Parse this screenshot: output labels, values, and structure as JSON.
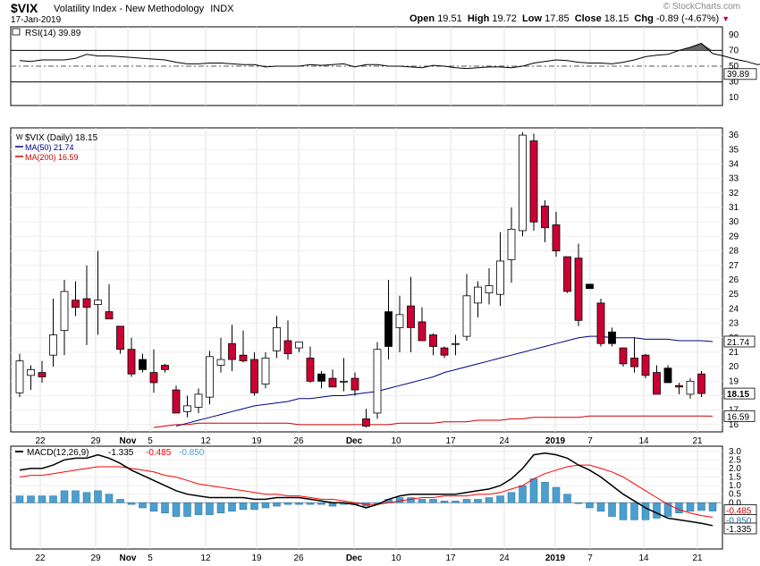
{
  "header": {
    "symbol": "$VIX",
    "name": "Volatility Index - New Methodology",
    "exchange": "INDX",
    "date": "17-Jan-2019",
    "watermark": "© StockCharts.com",
    "open_label": "Open",
    "open": "19.51",
    "high_label": "High",
    "high": "19.72",
    "low_label": "Low",
    "low": "17.85",
    "close_label": "Close",
    "close": "18.15",
    "chg_label": "Chg",
    "chg": "-0.89 (-4.67%)"
  },
  "colors": {
    "up": "#ffffff",
    "down": "#cc0033",
    "down_hollowless": "#000000",
    "ma50": "#000080",
    "ma200": "#cc0000",
    "rsi": "#000000",
    "macd_line": "#000000",
    "signal_line": "#ff0000",
    "histogram": "#4a9fd0"
  },
  "chart_data": [
    {
      "type": "line",
      "panel": "rsi",
      "label": "RSI(14) 39.89",
      "current": "39.89",
      "levels": [
        70,
        50,
        30
      ],
      "ylim": [
        0,
        100
      ],
      "y_ticks": [
        10,
        30,
        50,
        70,
        90
      ],
      "values": [
        57,
        56,
        58,
        58,
        58,
        60,
        65,
        63,
        63,
        62,
        61,
        60,
        59,
        58,
        55,
        53,
        53,
        54,
        54,
        53,
        52,
        52,
        49,
        50,
        50,
        50,
        52,
        51,
        52,
        53,
        49,
        52,
        52,
        50,
        50,
        49,
        48,
        51,
        50,
        48,
        47,
        48,
        49,
        49,
        48,
        50,
        54,
        56,
        58,
        57,
        55,
        54,
        54,
        53,
        55,
        58,
        62,
        64,
        65,
        70,
        74,
        79,
        66,
        63,
        59,
        56,
        52,
        53,
        50,
        48,
        46,
        46,
        45,
        44,
        43,
        44,
        42,
        42,
        43,
        42,
        41,
        42,
        41,
        40
      ]
    },
    {
      "type": "candlestick",
      "panel": "price",
      "label": "$VIX (Daily) 18.15",
      "ylim": [
        15.5,
        36.5
      ],
      "y_ticks": [
        16,
        17,
        18,
        19,
        20,
        21,
        22,
        23,
        24,
        25,
        26,
        27,
        28,
        29,
        30,
        31,
        32,
        33,
        34,
        35,
        36
      ],
      "x_tick_labels": [
        "22",
        "29",
        "Nov",
        "5",
        "12",
        "19",
        "26",
        "Dec",
        "10",
        "17",
        "24",
        "2019",
        "7",
        "14",
        "21"
      ],
      "candles": [
        {
          "o": 18.2,
          "h": 20.9,
          "l": 17.9,
          "c": 20.4,
          "dir": "up"
        },
        {
          "o": 19.4,
          "h": 20.1,
          "l": 18.4,
          "c": 19.8,
          "dir": "up"
        },
        {
          "o": 19.6,
          "h": 20.4,
          "l": 18.9,
          "c": 19.3,
          "dir": "down"
        },
        {
          "o": 20.8,
          "h": 24.7,
          "l": 20.0,
          "c": 22.2,
          "dir": "up"
        },
        {
          "o": 22.5,
          "h": 26.0,
          "l": 20.8,
          "c": 25.2,
          "dir": "up"
        },
        {
          "o": 24.6,
          "h": 25.9,
          "l": 23.5,
          "c": 24.1,
          "dir": "down"
        },
        {
          "o": 24.1,
          "h": 27.0,
          "l": 21.5,
          "c": 24.7,
          "dir": "down"
        },
        {
          "o": 24.3,
          "h": 28.0,
          "l": 22.2,
          "c": 24.6,
          "dir": "up"
        },
        {
          "o": 23.8,
          "h": 25.7,
          "l": 23.3,
          "c": 23.3,
          "dir": "down"
        },
        {
          "o": 22.8,
          "h": 22.7,
          "l": 20.9,
          "c": 21.2,
          "dir": "down"
        },
        {
          "o": 21.2,
          "h": 22.0,
          "l": 19.3,
          "c": 19.5,
          "dir": "down"
        },
        {
          "o": 20.5,
          "h": 20.9,
          "l": 19.6,
          "c": 19.8,
          "dir": "down_black"
        },
        {
          "o": 18.9,
          "h": 21.2,
          "l": 18.2,
          "c": 19.6,
          "dir": "down"
        },
        {
          "o": 20.1,
          "h": 20.2,
          "l": 19.6,
          "c": 19.8,
          "dir": "down"
        },
        {
          "o": 18.4,
          "h": 18.7,
          "l": 16.9,
          "c": 16.8,
          "dir": "down"
        },
        {
          "o": 16.9,
          "h": 18.0,
          "l": 16.5,
          "c": 17.3,
          "dir": "up"
        },
        {
          "o": 17.2,
          "h": 18.5,
          "l": 16.8,
          "c": 18.1,
          "dir": "up"
        },
        {
          "o": 17.9,
          "h": 21.1,
          "l": 17.4,
          "c": 20.7,
          "dir": "up"
        },
        {
          "o": 20.1,
          "h": 22.0,
          "l": 19.6,
          "c": 20.5,
          "dir": "up"
        },
        {
          "o": 21.6,
          "h": 22.9,
          "l": 19.7,
          "c": 20.5,
          "dir": "down"
        },
        {
          "o": 20.8,
          "h": 22.5,
          "l": 20.3,
          "c": 20.4,
          "dir": "down"
        },
        {
          "o": 20.5,
          "h": 21.0,
          "l": 18.0,
          "c": 18.2,
          "dir": "down"
        },
        {
          "o": 18.8,
          "h": 21.0,
          "l": 18.5,
          "c": 20.6,
          "dir": "up"
        },
        {
          "o": 21.1,
          "h": 23.5,
          "l": 20.6,
          "c": 22.7,
          "dir": "up"
        },
        {
          "o": 21.8,
          "h": 23.2,
          "l": 20.5,
          "c": 20.9,
          "dir": "down"
        },
        {
          "o": 21.7,
          "h": 21.7,
          "l": 21.0,
          "c": 21.3,
          "dir": "up"
        },
        {
          "o": 20.6,
          "h": 21.4,
          "l": 18.9,
          "c": 19.0,
          "dir": "down"
        },
        {
          "o": 19.5,
          "h": 19.7,
          "l": 18.5,
          "c": 19.0,
          "dir": "down_black"
        },
        {
          "o": 19.2,
          "h": 19.8,
          "l": 18.6,
          "c": 18.6,
          "dir": "down"
        },
        {
          "o": 19.0,
          "h": 20.6,
          "l": 18.3,
          "c": 19.0,
          "dir": "up"
        },
        {
          "o": 19.2,
          "h": 19.6,
          "l": 18.0,
          "c": 18.4,
          "dir": "down"
        },
        {
          "o": 16.4,
          "h": 17.1,
          "l": 15.8,
          "c": 15.9,
          "dir": "down"
        },
        {
          "o": 16.8,
          "h": 21.7,
          "l": 16.4,
          "c": 21.2,
          "dir": "up"
        },
        {
          "o": 21.4,
          "h": 26.0,
          "l": 20.5,
          "c": 23.8,
          "dir": "down_black"
        },
        {
          "o": 22.7,
          "h": 24.9,
          "l": 21.0,
          "c": 23.6,
          "dir": "up"
        },
        {
          "o": 24.2,
          "h": 26.2,
          "l": 21.0,
          "c": 22.7,
          "dir": "down"
        },
        {
          "o": 23.1,
          "h": 24.1,
          "l": 21.9,
          "c": 21.8,
          "dir": "down"
        },
        {
          "o": 22.2,
          "h": 22.3,
          "l": 20.8,
          "c": 21.4,
          "dir": "down"
        },
        {
          "o": 21.3,
          "h": 21.4,
          "l": 20.6,
          "c": 20.8,
          "dir": "down"
        },
        {
          "o": 21.6,
          "h": 22.2,
          "l": 20.8,
          "c": 21.6,
          "dir": "up"
        },
        {
          "o": 22.1,
          "h": 26.4,
          "l": 21.8,
          "c": 24.9,
          "dir": "up"
        },
        {
          "o": 24.4,
          "h": 25.9,
          "l": 23.4,
          "c": 25.5,
          "dir": "up"
        },
        {
          "o": 25.1,
          "h": 26.8,
          "l": 24.3,
          "c": 25.6,
          "dir": "up"
        },
        {
          "o": 25.0,
          "h": 29.3,
          "l": 24.2,
          "c": 27.3,
          "dir": "up"
        },
        {
          "o": 27.4,
          "h": 31.0,
          "l": 25.8,
          "c": 29.5,
          "dir": "up"
        },
        {
          "o": 29.4,
          "h": 36.2,
          "l": 29.0,
          "c": 36.0,
          "dir": "up"
        },
        {
          "o": 35.6,
          "h": 36.1,
          "l": 29.4,
          "c": 30.0,
          "dir": "down"
        },
        {
          "o": 31.1,
          "h": 31.5,
          "l": 28.6,
          "c": 29.6,
          "dir": "down"
        },
        {
          "o": 29.8,
          "h": 30.7,
          "l": 27.6,
          "c": 28.0,
          "dir": "down"
        },
        {
          "o": 27.6,
          "h": 27.6,
          "l": 25.1,
          "c": 25.2,
          "dir": "down"
        },
        {
          "o": 27.5,
          "h": 28.5,
          "l": 22.8,
          "c": 23.2,
          "dir": "down"
        },
        {
          "o": 25.7,
          "h": 25.6,
          "l": 25.4,
          "c": 25.4,
          "dir": "down_black"
        },
        {
          "o": 24.4,
          "h": 24.7,
          "l": 21.4,
          "c": 21.6,
          "dir": "down"
        },
        {
          "o": 22.4,
          "h": 22.7,
          "l": 21.4,
          "c": 21.6,
          "dir": "down_black"
        },
        {
          "o": 21.3,
          "h": 21.3,
          "l": 20.0,
          "c": 20.2,
          "dir": "down"
        },
        {
          "o": 20.6,
          "h": 22.0,
          "l": 19.6,
          "c": 20.0,
          "dir": "down"
        },
        {
          "o": 20.8,
          "h": 20.9,
          "l": 19.2,
          "c": 19.4,
          "dir": "down"
        },
        {
          "o": 19.6,
          "h": 20.1,
          "l": 18.1,
          "c": 18.1,
          "dir": "down"
        },
        {
          "o": 19.9,
          "h": 20.1,
          "l": 18.9,
          "c": 18.9,
          "dir": "down_black"
        },
        {
          "o": 18.7,
          "h": 18.9,
          "l": 18.1,
          "c": 18.6,
          "dir": "down"
        },
        {
          "o": 18.1,
          "h": 19.2,
          "l": 17.8,
          "c": 19.0,
          "dir": "up"
        },
        {
          "o": 19.5,
          "h": 19.7,
          "l": 17.9,
          "c": 18.15,
          "dir": "down"
        }
      ],
      "series": [
        {
          "name": "MA(50) 21.74",
          "current": "21.74",
          "values": [
            null,
            null,
            null,
            null,
            null,
            null,
            null,
            null,
            null,
            null,
            null,
            null,
            null,
            null,
            15.9,
            16.1,
            16.3,
            16.5,
            16.7,
            16.9,
            17.1,
            17.3,
            17.4,
            17.5,
            17.6,
            17.8,
            17.8,
            17.9,
            18.0,
            18.0,
            18.1,
            18.2,
            18.3,
            18.5,
            18.7,
            18.9,
            19.1,
            19.3,
            19.6,
            19.8,
            20.0,
            20.2,
            20.4,
            20.6,
            20.8,
            21.0,
            21.2,
            21.4,
            21.6,
            21.8,
            22.0,
            22.1,
            22.1,
            22.0,
            22.0,
            22.0,
            21.9,
            21.9,
            21.9,
            21.8,
            21.8,
            21.8,
            21.74
          ]
        },
        {
          "name": "MA(200) 16.59",
          "current": "16.59",
          "values": [
            null,
            null,
            null,
            null,
            null,
            null,
            null,
            null,
            null,
            null,
            null,
            null,
            15.8,
            15.9,
            16.0,
            16.0,
            16.1,
            16.1,
            16.1,
            16.1,
            16.1,
            16.1,
            16.1,
            16.1,
            16.1,
            16.0,
            16.0,
            16.0,
            16.0,
            16.0,
            16.0,
            16.0,
            16.0,
            16.0,
            16.1,
            16.1,
            16.1,
            16.1,
            16.2,
            16.2,
            16.2,
            16.3,
            16.3,
            16.3,
            16.4,
            16.4,
            16.5,
            16.5,
            16.5,
            16.5,
            16.5,
            16.6,
            16.6,
            16.6,
            16.6,
            16.6,
            16.6,
            16.6,
            16.6,
            16.6,
            16.6,
            16.6,
            16.59
          ]
        }
      ]
    },
    {
      "type": "line",
      "panel": "macd",
      "label": "MACD(12,26,9)",
      "label_values": [
        "-1.335",
        "-0.485",
        "-0.850"
      ],
      "ylim": [
        -2.7,
        3.3
      ],
      "y_ticks": [
        3.0,
        2.5,
        2.0,
        1.5,
        1.0,
        0.5,
        0.0
      ],
      "y_tick_labels": [
        "3.0",
        "2.5",
        "2.0",
        "1.5",
        "1.0",
        "0.5",
        "0.0"
      ],
      "value_flags": [
        "-0.485",
        "-0.850",
        "-1.335"
      ],
      "series": [
        {
          "name": "MACD",
          "values": [
            1.9,
            2.0,
            2.0,
            2.2,
            2.5,
            2.6,
            2.6,
            2.8,
            2.6,
            2.3,
            1.9,
            1.6,
            1.3,
            1.0,
            0.7,
            0.5,
            0.4,
            0.3,
            0.3,
            0.3,
            0.3,
            0.2,
            0.2,
            0.3,
            0.3,
            0.3,
            0.2,
            0.1,
            0.0,
            0.0,
            -0.1,
            -0.3,
            -0.1,
            0.2,
            0.4,
            0.5,
            0.5,
            0.5,
            0.5,
            0.5,
            0.6,
            0.7,
            0.8,
            1.0,
            1.4,
            2.0,
            2.8,
            2.9,
            2.8,
            2.6,
            2.2,
            1.9,
            1.5,
            1.0,
            0.5,
            0.1,
            -0.3,
            -0.6,
            -0.9,
            -1.0,
            -1.1,
            -1.2,
            -1.335
          ]
        },
        {
          "name": "Signal",
          "values": [
            1.5,
            1.6,
            1.6,
            1.7,
            1.8,
            1.9,
            2.0,
            2.1,
            2.1,
            2.1,
            2.0,
            1.9,
            1.8,
            1.6,
            1.5,
            1.3,
            1.1,
            1.0,
            0.9,
            0.8,
            0.7,
            0.6,
            0.5,
            0.5,
            0.4,
            0.4,
            0.3,
            0.2,
            0.2,
            0.1,
            0.0,
            -0.1,
            -0.1,
            0.0,
            0.1,
            0.2,
            0.3,
            0.3,
            0.4,
            0.4,
            0.4,
            0.5,
            0.5,
            0.6,
            0.8,
            1.0,
            1.4,
            1.7,
            1.9,
            2.1,
            2.2,
            2.2,
            2.0,
            1.8,
            1.5,
            1.1,
            0.7,
            0.3,
            -0.1,
            -0.4,
            -0.6,
            -0.75,
            -0.85
          ]
        },
        {
          "name": "Histogram",
          "values": [
            0.4,
            0.4,
            0.4,
            0.4,
            0.7,
            0.7,
            0.6,
            0.7,
            0.5,
            0.2,
            -0.1,
            -0.3,
            -0.5,
            -0.6,
            -0.8,
            -0.8,
            -0.7,
            -0.7,
            -0.6,
            -0.5,
            -0.4,
            -0.4,
            -0.3,
            -0.2,
            -0.1,
            -0.1,
            -0.1,
            -0.1,
            -0.2,
            -0.1,
            -0.1,
            -0.2,
            0.0,
            0.2,
            0.3,
            0.3,
            0.2,
            0.2,
            0.1,
            0.1,
            0.2,
            0.2,
            0.3,
            0.4,
            0.6,
            1.0,
            1.4,
            1.2,
            0.9,
            0.5,
            0.0,
            -0.3,
            -0.5,
            -0.8,
            -1.0,
            -1.0,
            -1.0,
            -0.9,
            -0.8,
            -0.6,
            -0.5,
            -0.45,
            -0.485
          ]
        }
      ]
    }
  ]
}
